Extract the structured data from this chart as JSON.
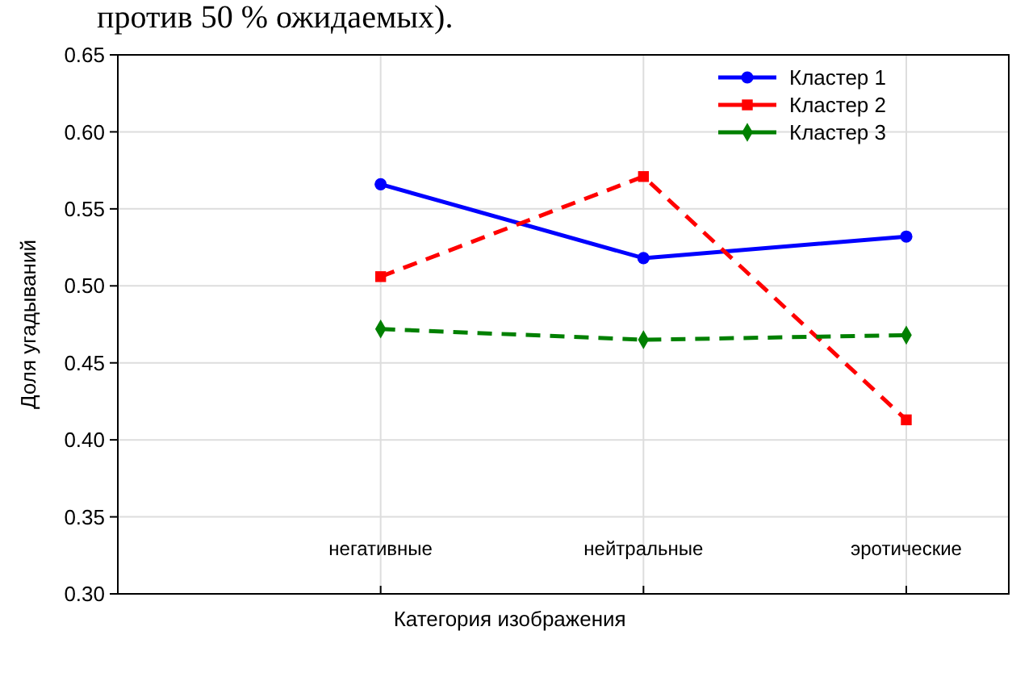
{
  "chart_data": {
    "type": "line",
    "xlabel": "Категория изображения",
    "ylabel": "Доля угадываний",
    "annotations": [
      "против 50 % ожидаемых)."
    ],
    "categories": [
      "негативные",
      "нейтральные",
      "эротические"
    ],
    "series": [
      {
        "name": "Кластер 1",
        "color": "#0000ff",
        "values": [
          0.566,
          0.518,
          0.532
        ],
        "marker": "circle",
        "line_style": "solid"
      },
      {
        "name": "Кластер 2",
        "color": "#ff0000",
        "values": [
          0.506,
          0.571,
          0.413
        ],
        "marker": "square",
        "line_style": "dashed"
      },
      {
        "name": "Кластер 3",
        "color": "#008000",
        "values": [
          0.472,
          0.465,
          0.468
        ],
        "marker": "diamond",
        "line_style": "dashed"
      }
    ],
    "ylim": [
      0.3,
      0.65
    ],
    "yticks": [
      {
        "value": 0.3,
        "label": "0.30"
      },
      {
        "value": 0.35,
        "label": "0.35"
      },
      {
        "value": 0.4,
        "label": "0.40"
      },
      {
        "value": 0.45,
        "label": "0.45"
      },
      {
        "value": 0.5,
        "label": "0.50"
      },
      {
        "value": 0.55,
        "label": "0.55"
      },
      {
        "value": 0.6,
        "label": "0.60"
      },
      {
        "value": 0.65,
        "label": "0.65"
      }
    ],
    "grid": true,
    "legend": "top right"
  }
}
